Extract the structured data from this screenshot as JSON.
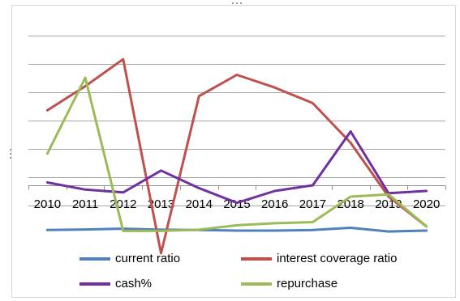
{
  "chart_data": {
    "type": "line",
    "title": "",
    "xlabel": "",
    "ylabel": "",
    "grid": true,
    "legend_position": "bottom",
    "y_axis_labels_visible": false,
    "ylim": [
      -0.7,
      7.3
    ],
    "categories": [
      "2010",
      "2011",
      "2012",
      "2013",
      "2014",
      "2015",
      "2016",
      "2017",
      "2018",
      "2019",
      "2020"
    ],
    "series": [
      {
        "name": "current ratio",
        "color": "#4f81bd",
        "values": [
          0.12,
          0.14,
          0.17,
          0.13,
          0.12,
          0.1,
          0.1,
          0.12,
          0.2,
          0.07,
          0.1
        ]
      },
      {
        "name": "interest coverage ratio",
        "color": "#c0504d",
        "values": [
          4.35,
          5.2,
          6.15,
          -0.7,
          4.85,
          5.6,
          5.15,
          4.6,
          3.2,
          1.3,
          0.25
        ]
      },
      {
        "name": "cash%",
        "color": "#7030a0",
        "values": [
          1.8,
          1.55,
          1.45,
          2.22,
          1.6,
          1.08,
          1.5,
          1.7,
          3.6,
          1.42,
          1.5
        ]
      },
      {
        "name": "repurchase",
        "color": "#9bbb59",
        "values": [
          2.82,
          5.5,
          0.09,
          0.09,
          0.13,
          0.29,
          0.36,
          0.4,
          1.3,
          1.38,
          0.25
        ]
      }
    ]
  }
}
